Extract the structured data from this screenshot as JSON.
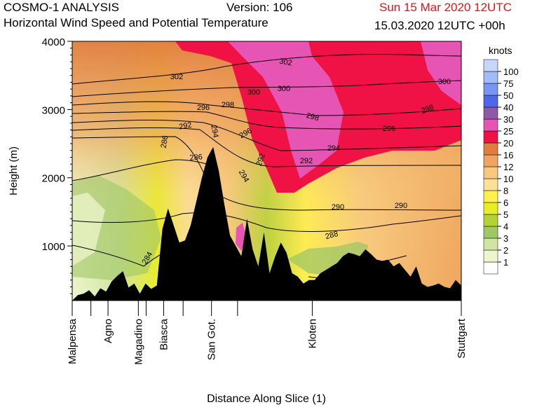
{
  "header": {
    "model_title": "COSMO-1 ANALYSIS",
    "subtitle": "Horizontal Wind Speed and Potential Temperature",
    "version": "Version: 106",
    "date_time": "Sun 15 Mar 2020 12UTC",
    "valid_time": "15.03.2020 12UTC +00h"
  },
  "chart_data": {
    "type": "heatmap",
    "xlabel": "Distance Along Slice (1)",
    "ylabel": "Height (m)",
    "ylim": [
      200,
      4000
    ],
    "y_ticks": [
      1000,
      2000,
      3000,
      4000
    ],
    "x_stations": [
      {
        "label": "Malpensa",
        "pos": 0.0
      },
      {
        "label": "Agno",
        "pos": 0.092
      },
      {
        "label": "Magadino",
        "pos": 0.17
      },
      {
        "label": "Biasca",
        "pos": 0.235
      },
      {
        "label": "San Got.",
        "pos": 0.358
      },
      {
        "label": "Kloten",
        "pos": 0.617
      },
      {
        "label": "Stuttgart",
        "pos": 1.0
      }
    ],
    "x_minor_ticks": [
      0.048,
      0.19,
      0.285,
      0.425
    ],
    "colorbar": {
      "unit": "knots",
      "levels": [
        "1",
        "2",
        "3",
        "4",
        "5",
        "6",
        "8",
        "10",
        "12",
        "16",
        "20",
        "25",
        "30",
        "40",
        "50",
        "75",
        "100"
      ],
      "colors": [
        "#ffffff",
        "#edf5cc",
        "#cfe6a3",
        "#9ec765",
        "#b5d235",
        "#e8ee26",
        "#fff04e",
        "#fbe09a",
        "#f7c97e",
        "#efa55f",
        "#e27d3e",
        "#f01245",
        "#e654b4",
        "#8e5aa8",
        "#5067ec",
        "#7895f2",
        "#a2bcf8",
        "#c6d6fd"
      ]
    },
    "isentropes_K": [
      284,
      286,
      286,
      288,
      290,
      290,
      290,
      292,
      292,
      292,
      294,
      294,
      294,
      296,
      296,
      296,
      298,
      298,
      298,
      300,
      300,
      300,
      302,
      302
    ],
    "terrain_profile_m": [
      200,
      280,
      300,
      350,
      260,
      380,
      330,
      480,
      560,
      630,
      390,
      450,
      300,
      450,
      370,
      420,
      1250,
      1550,
      1300,
      1050,
      1080,
      1300,
      1650,
      2000,
      2300,
      2450,
      2100,
      1600,
      1150,
      1000,
      850,
      1400,
      950,
      700,
      1200,
      600,
      850,
      1050,
      900,
      600,
      550,
      450,
      500,
      500,
      600,
      650,
      700,
      750,
      850,
      900,
      880,
      850,
      950,
      880,
      800,
      780,
      800,
      700,
      750,
      650,
      550,
      700,
      450,
      400,
      420,
      450,
      400,
      380,
      500,
      420
    ]
  }
}
